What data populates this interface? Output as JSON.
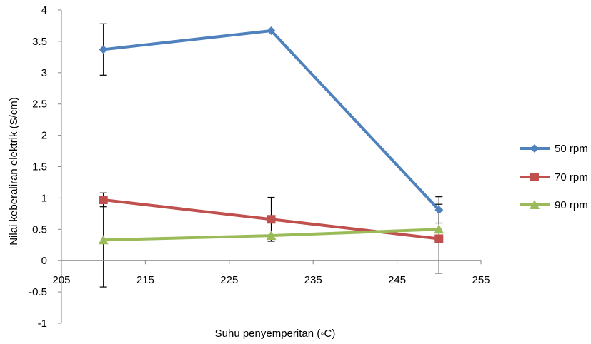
{
  "chart_data": {
    "type": "line",
    "xlabel": "Suhu penyemperitan  (◦C)",
    "ylabel": "Nilai keberaliran elektrik (S/cm)",
    "xlim": [
      205,
      255
    ],
    "ylim": [
      -1,
      4
    ],
    "x_ticks": [
      "205",
      "215",
      "225",
      "235",
      "245",
      "255"
    ],
    "y_ticks": [
      "-1",
      "-0.5",
      "0",
      "0.5",
      "1",
      "1.5",
      "2",
      "2.5",
      "3",
      "3.5",
      "4"
    ],
    "x": [
      210,
      230,
      250
    ],
    "legend": "right",
    "grid": false,
    "series": [
      {
        "name": "50 rpm",
        "color": "#4f81bd",
        "marker": "diamond",
        "values": [
          3.37,
          3.67,
          0.81
        ],
        "error": [
          0.41,
          0.0,
          0.21
        ]
      },
      {
        "name": "70 rpm",
        "color": "#c0504d",
        "marker": "square",
        "values": [
          0.97,
          0.66,
          0.35
        ],
        "error": [
          0.11,
          0.35,
          0.55
        ]
      },
      {
        "name": "90 rpm",
        "color": "#9bbb59",
        "marker": "triangle",
        "values": [
          0.33,
          0.4,
          0.5
        ],
        "error": [
          0.75,
          0.0,
          0.0
        ]
      }
    ]
  }
}
